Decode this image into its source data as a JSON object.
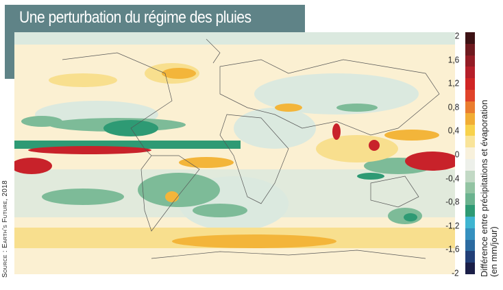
{
  "title": "Une perturbation du régime des pluies",
  "source": "Source : Earth's Future, 2018",
  "legend": {
    "label_line1": "Différence entre précipitations et évaporation",
    "label_line2": "(en mm/jour)",
    "ticks": [
      "2",
      "1,6",
      "1,2",
      "0,8",
      "0,4",
      "0",
      "-0,4",
      "-0,8",
      "-1,2",
      "-1,6",
      "-2"
    ],
    "range": [
      -2,
      2
    ],
    "colors": [
      "#3d1214",
      "#6e1a1f",
      "#931c25",
      "#b51f2a",
      "#d02525",
      "#e0432a",
      "#ea7d2f",
      "#f1ad35",
      "#f8d24c",
      "#f9e49a",
      "#f8f1dc",
      "#edf0ea",
      "#c2d9c5",
      "#93c4a3",
      "#6bb38f",
      "#2e9a74",
      "#3fb5d1",
      "#3590bf",
      "#2b6aa0",
      "#223f78",
      "#1b1f48"
    ]
  },
  "map_colors": {
    "background": "#fbf0d2",
    "wet_strong": "#c8222a",
    "wet": "#f3b53a",
    "wet_light": "#f8df8e",
    "dry_light": "#dbe9df",
    "dry": "#7dbb98",
    "dry_strong": "#2e9a74",
    "coast": "#555555"
  }
}
